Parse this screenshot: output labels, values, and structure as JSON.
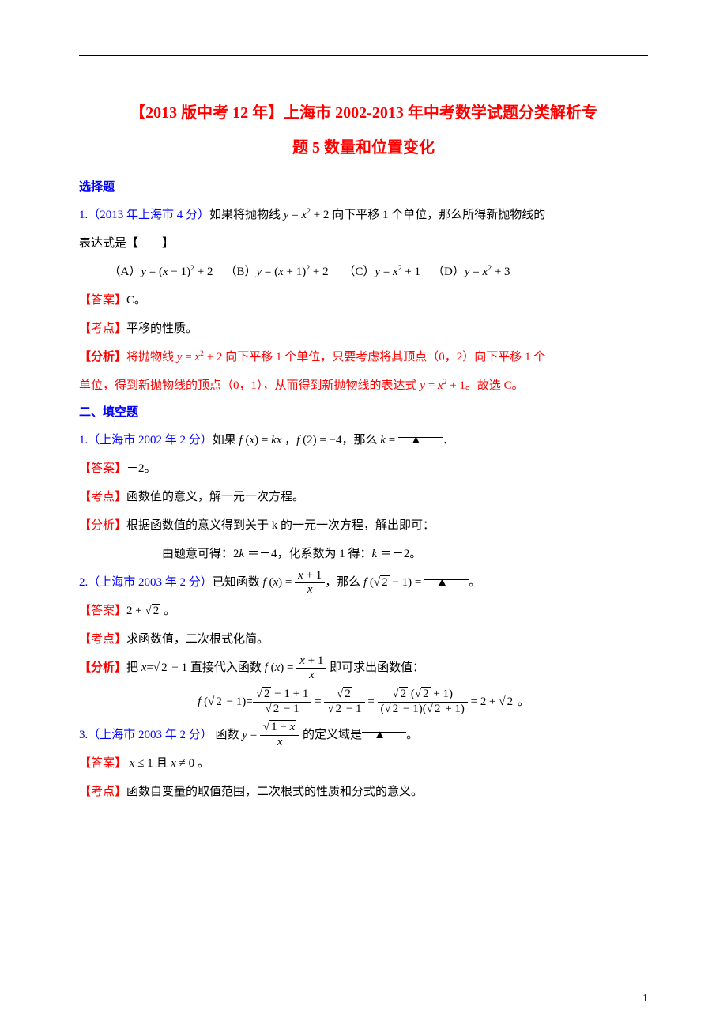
{
  "title1": "【2013 版中考 12 年】上海市 2002-2013 年中考数学试题分类解析专",
  "title2": "题 5 数量和位置变化",
  "sec1": "选择题",
  "q1_ref": "1.（2013 年上海市 4 分）",
  "q1_tail": "向下平移 1 个单位，那么所得新抛物线的",
  "q1_line2": "表达式是【　　】",
  "choices_html": "（A）<span class='mi'>y</span> = (<span class='mi'>x</span> − 1)<span class='sup'>2</span> + 2 （B）<span class='mi'>y</span> = (<span class='mi'>x</span> + 1)<span class='sup'>2</span> + 2 （C）<span class='mi'>y</span> = <span class='mi'>x</span><span class='sup'>2</span> + 1 （D）<span class='mi'>y</span> = <span class='mi'>x</span><span class='sup'>2</span> + 3",
  "ans_lbl": "【答案】",
  "kd_lbl": "【考点】",
  "fx_lbl": "【分析】",
  "q1_ans": "C。",
  "q1_kd": "平移的性质。",
  "q1_fx_a": "将抛物线",
  "q1_fx_b": "向下平移 1 个单位，只要考虑将其顶点（0，2）向下平移 1 个",
  "q1_fx_c": "单位，得到新抛物线的顶点（0，1），从而得到新抛物线的表达式",
  "q1_fx_d": "。故选 C。",
  "sec2": "二、填空题",
  "f1_ref": "1.（上海市 2002 年 2 分）",
  "f1_mid": "，那么",
  "f1_blank": "　▲　",
  "f1_end": "．",
  "f1_ans": "－2。",
  "f1_kd": "函数值的意义，解一元一次方程。",
  "f1_fx": "根据函数值的意义得到关于 k 的一元一次方程，解出即可：",
  "f1_work_a": "由题意可得：2",
  "f1_work_b": "＝－4，化系数为 1 得：",
  "f1_work_c": "＝－2。",
  "f2_ref": "2.（上海市 2003 年 2 分）",
  "f2_a": "已知函数",
  "f2_b": "，那么",
  "f2_end": "。",
  "f2_ans_pre": "2 + ",
  "f2_ans_end": " 。",
  "f2_kd": "求函数值，二次根式化简。",
  "f2_fx_a": "把",
  "f2_fx_b": "  直接代入函数",
  "f2_fx_c": "即可求出函数值：",
  "f3_ref": "3.（上海市 2003 年 2 分）",
  "f3_a": " 函数",
  "f3_b": "的定义域是",
  "f3_end": "。",
  "f3_ans_a": " ≤ 1 且 ",
  "f3_ans_b": " ≠ 0 。",
  "f3_kd": "函数自变量的取值范围，二次根式的性质和分式的意义。",
  "page_num": "1",
  "colors": {
    "red": "#ff0000",
    "blue": "#0000ff",
    "black": "#000000"
  }
}
